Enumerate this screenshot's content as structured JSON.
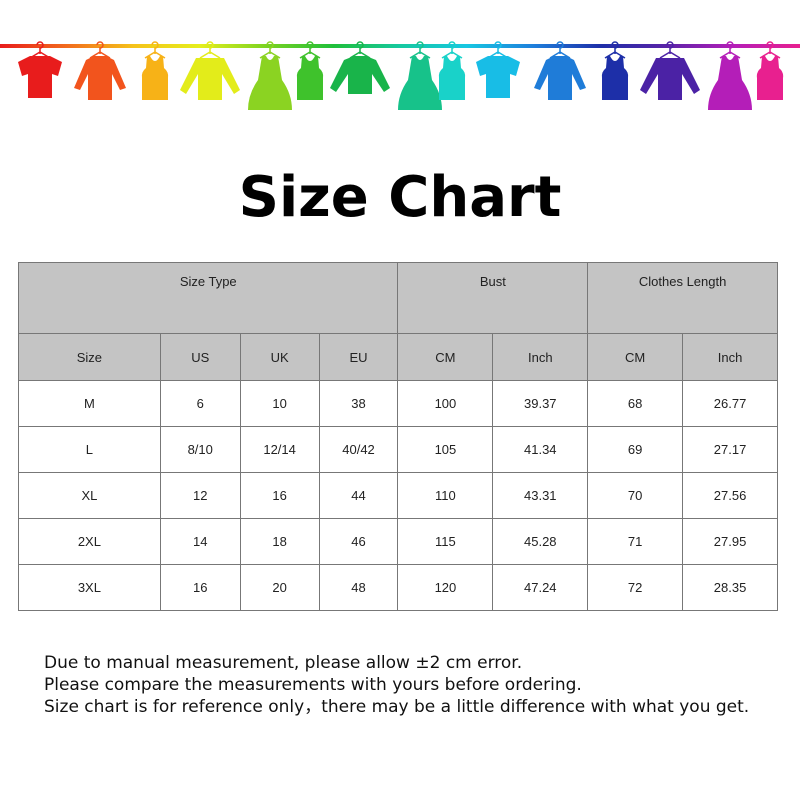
{
  "banner": {
    "clothes": [
      {
        "icon": "tshirt-icon",
        "color": "#e81c1c"
      },
      {
        "icon": "shirt-icon",
        "color": "#f2541d"
      },
      {
        "icon": "tank-top-icon",
        "color": "#f7b217"
      },
      {
        "icon": "sweater-icon",
        "color": "#e3ec1a"
      },
      {
        "icon": "dress-icon",
        "color": "#8bd322"
      },
      {
        "icon": "tank-top-icon",
        "color": "#3fc22c"
      },
      {
        "icon": "longsleeve-icon",
        "color": "#19b44a"
      },
      {
        "icon": "dress-icon",
        "color": "#17c28a"
      },
      {
        "icon": "tank-top-icon",
        "color": "#19d2c9"
      },
      {
        "icon": "tshirt-icon",
        "color": "#18bde6"
      },
      {
        "icon": "shirt-icon",
        "color": "#1f7cd8"
      },
      {
        "icon": "tank-top-icon",
        "color": "#1d2fa8"
      },
      {
        "icon": "sweater-icon",
        "color": "#4b22a5"
      },
      {
        "icon": "dress-icon",
        "color": "#b41eb8"
      },
      {
        "icon": "tank-top-icon",
        "color": "#e8208f"
      }
    ]
  },
  "title": "Size Chart",
  "table": {
    "groups": [
      "Size Type",
      "Bust",
      "Clothes Length"
    ],
    "columns": [
      "Size",
      "US",
      "UK",
      "EU",
      "CM",
      "Inch",
      "CM",
      "Inch"
    ],
    "rows": [
      [
        "M",
        "6",
        "10",
        "38",
        "100",
        "39.37",
        "68",
        "26.77"
      ],
      [
        "L",
        "8/10",
        "12/14",
        "40/42",
        "105",
        "41.34",
        "69",
        "27.17"
      ],
      [
        "XL",
        "12",
        "16",
        "44",
        "110",
        "43.31",
        "70",
        "27.56"
      ],
      [
        "2XL",
        "14",
        "18",
        "46",
        "115",
        "45.28",
        "71",
        "27.95"
      ],
      [
        "3XL",
        "16",
        "20",
        "48",
        "120",
        "47.24",
        "72",
        "28.35"
      ]
    ]
  },
  "notes": [
    "Due to manual measurement, please allow ±2 cm error.",
    "Please compare the measurements with yours before ordering.",
    "Size chart is for reference only，there may be a little difference with what you get."
  ]
}
